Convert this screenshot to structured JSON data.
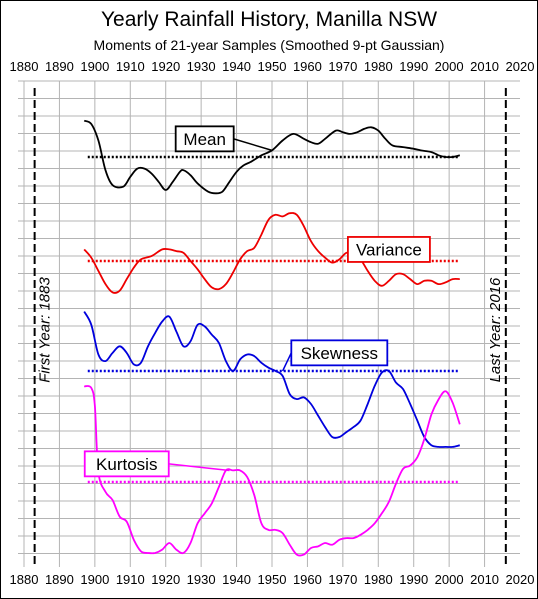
{
  "chart_data": {
    "type": "line",
    "title": "Yearly Rainfall History, Manilla NSW",
    "subtitle": "Moments of 21-year Samples (Smoothed 9-pt Gaussian)",
    "xlim": [
      1880,
      2020
    ],
    "x_ticks": [
      "1880",
      "1890",
      "1900",
      "1910",
      "1920",
      "1930",
      "1940",
      "1950",
      "1960",
      "1970",
      "1980",
      "1990",
      "2000",
      "2010",
      "2020"
    ],
    "grid": true,
    "annotations": {
      "first_year": {
        "x": 1883,
        "label": "First Year: 1883"
      },
      "last_year": {
        "x": 2016,
        "label": "Last Year: 2016"
      }
    },
    "series": [
      {
        "name": "Mean",
        "color": "#000000",
        "mean_line": 0.0,
        "label_at": [
          1931,
          0.55
        ],
        "points": [
          [
            1897,
            1.1
          ],
          [
            1899,
            1.0
          ],
          [
            1901,
            0.5
          ],
          [
            1903,
            -0.4
          ],
          [
            1905,
            -0.85
          ],
          [
            1908,
            -0.9
          ],
          [
            1910,
            -0.6
          ],
          [
            1912,
            -0.35
          ],
          [
            1914,
            -0.35
          ],
          [
            1916,
            -0.5
          ],
          [
            1918,
            -0.75
          ],
          [
            1920,
            -1.0
          ],
          [
            1922,
            -0.75
          ],
          [
            1924,
            -0.45
          ],
          [
            1925,
            -0.4
          ],
          [
            1927,
            -0.55
          ],
          [
            1929,
            -0.8
          ],
          [
            1932,
            -1.05
          ],
          [
            1934,
            -1.1
          ],
          [
            1936,
            -1.05
          ],
          [
            1938,
            -0.75
          ],
          [
            1940,
            -0.45
          ],
          [
            1942,
            -0.25
          ],
          [
            1944,
            -0.15
          ],
          [
            1947,
            0.05
          ],
          [
            1950,
            0.2
          ],
          [
            1953,
            0.5
          ],
          [
            1956,
            0.7
          ],
          [
            1959,
            0.55
          ],
          [
            1961,
            0.45
          ],
          [
            1963,
            0.4
          ],
          [
            1965,
            0.55
          ],
          [
            1968,
            0.8
          ],
          [
            1970,
            0.75
          ],
          [
            1972,
            0.7
          ],
          [
            1974,
            0.75
          ],
          [
            1976,
            0.85
          ],
          [
            1978,
            0.9
          ],
          [
            1980,
            0.8
          ],
          [
            1982,
            0.55
          ],
          [
            1984,
            0.35
          ],
          [
            1987,
            0.3
          ],
          [
            1990,
            0.25
          ],
          [
            1992,
            0.2
          ],
          [
            1995,
            0.15
          ],
          [
            1997,
            0.05
          ],
          [
            1999,
            0.0
          ],
          [
            2001,
            0.0
          ],
          [
            2003,
            0.05
          ]
        ]
      },
      {
        "name": "Variance",
        "color": "#ee0000",
        "mean_line": 0.0,
        "label_at": [
          1983,
          0.35
        ],
        "points": [
          [
            1897,
            0.35
          ],
          [
            1899,
            0.1
          ],
          [
            1901,
            -0.3
          ],
          [
            1903,
            -0.7
          ],
          [
            1905,
            -0.95
          ],
          [
            1907,
            -0.9
          ],
          [
            1909,
            -0.55
          ],
          [
            1911,
            -0.2
          ],
          [
            1913,
            0.05
          ],
          [
            1916,
            0.15
          ],
          [
            1919,
            0.35
          ],
          [
            1921,
            0.35
          ],
          [
            1923,
            0.3
          ],
          [
            1925,
            0.25
          ],
          [
            1927,
            0.0
          ],
          [
            1929,
            -0.25
          ],
          [
            1931,
            -0.55
          ],
          [
            1933,
            -0.8
          ],
          [
            1935,
            -0.85
          ],
          [
            1937,
            -0.7
          ],
          [
            1939,
            -0.35
          ],
          [
            1941,
            0.05
          ],
          [
            1943,
            0.3
          ],
          [
            1945,
            0.4
          ],
          [
            1947,
            0.8
          ],
          [
            1949,
            1.25
          ],
          [
            1951,
            1.4
          ],
          [
            1953,
            1.35
          ],
          [
            1955,
            1.45
          ],
          [
            1957,
            1.4
          ],
          [
            1959,
            1.05
          ],
          [
            1961,
            0.6
          ],
          [
            1963,
            0.3
          ],
          [
            1965,
            0.1
          ],
          [
            1967,
            -0.05
          ],
          [
            1969,
            0.05
          ],
          [
            1971,
            0.25
          ],
          [
            1973,
            0.2
          ],
          [
            1975,
            0.05
          ],
          [
            1977,
            -0.3
          ],
          [
            1979,
            -0.6
          ],
          [
            1981,
            -0.75
          ],
          [
            1983,
            -0.6
          ],
          [
            1985,
            -0.4
          ],
          [
            1987,
            -0.4
          ],
          [
            1989,
            -0.55
          ],
          [
            1991,
            -0.7
          ],
          [
            1993,
            -0.6
          ],
          [
            1995,
            -0.6
          ],
          [
            1997,
            -0.7
          ],
          [
            1999,
            -0.65
          ],
          [
            2001,
            -0.55
          ],
          [
            2003,
            -0.55
          ]
        ]
      },
      {
        "name": "Skewness",
        "color": "#0000dd",
        "mean_line": 0.0,
        "label_at": [
          1969,
          0.55
        ],
        "points": [
          [
            1897,
            1.8
          ],
          [
            1899,
            1.4
          ],
          [
            1901,
            0.5
          ],
          [
            1903,
            0.3
          ],
          [
            1905,
            0.55
          ],
          [
            1907,
            0.75
          ],
          [
            1909,
            0.55
          ],
          [
            1911,
            0.2
          ],
          [
            1913,
            0.25
          ],
          [
            1915,
            0.75
          ],
          [
            1917,
            1.15
          ],
          [
            1919,
            1.5
          ],
          [
            1921,
            1.65
          ],
          [
            1923,
            1.2
          ],
          [
            1925,
            0.75
          ],
          [
            1927,
            0.9
          ],
          [
            1929,
            1.4
          ],
          [
            1931,
            1.35
          ],
          [
            1933,
            1.1
          ],
          [
            1935,
            0.85
          ],
          [
            1937,
            0.3
          ],
          [
            1939,
            0.0
          ],
          [
            1941,
            0.35
          ],
          [
            1943,
            0.5
          ],
          [
            1945,
            0.45
          ],
          [
            1947,
            0.25
          ],
          [
            1949,
            0.1
          ],
          [
            1951,
            0.0
          ],
          [
            1953,
            -0.15
          ],
          [
            1955,
            -0.7
          ],
          [
            1957,
            -0.85
          ],
          [
            1959,
            -0.8
          ],
          [
            1961,
            -1.0
          ],
          [
            1963,
            -1.35
          ],
          [
            1965,
            -1.7
          ],
          [
            1967,
            -2.0
          ],
          [
            1969,
            -2.0
          ],
          [
            1971,
            -1.85
          ],
          [
            1973,
            -1.7
          ],
          [
            1975,
            -1.5
          ],
          [
            1977,
            -1.0
          ],
          [
            1979,
            -0.45
          ],
          [
            1981,
            -0.05
          ],
          [
            1983,
            0.0
          ],
          [
            1985,
            -0.35
          ],
          [
            1987,
            -0.55
          ],
          [
            1989,
            -1.0
          ],
          [
            1991,
            -1.5
          ],
          [
            1993,
            -2.0
          ],
          [
            1995,
            -2.25
          ],
          [
            1997,
            -2.3
          ],
          [
            1999,
            -2.3
          ],
          [
            2001,
            -2.3
          ],
          [
            2003,
            -2.25
          ]
        ]
      },
      {
        "name": "Kurtosis",
        "color": "#ff00ff",
        "mean_line": 0.0,
        "label_at": [
          1909,
          0.55
        ],
        "points": [
          [
            1897,
            2.9
          ],
          [
            1899,
            2.85
          ],
          [
            1900,
            2.3
          ],
          [
            1901,
            0.3
          ],
          [
            1903,
            -0.3
          ],
          [
            1905,
            -0.55
          ],
          [
            1907,
            -1.05
          ],
          [
            1909,
            -1.2
          ],
          [
            1911,
            -1.75
          ],
          [
            1913,
            -2.1
          ],
          [
            1915,
            -2.15
          ],
          [
            1917,
            -2.15
          ],
          [
            1919,
            -2.05
          ],
          [
            1921,
            -1.85
          ],
          [
            1923,
            -2.05
          ],
          [
            1925,
            -2.15
          ],
          [
            1927,
            -1.85
          ],
          [
            1929,
            -1.25
          ],
          [
            1931,
            -0.95
          ],
          [
            1933,
            -0.65
          ],
          [
            1935,
            -0.15
          ],
          [
            1937,
            0.35
          ],
          [
            1939,
            0.35
          ],
          [
            1941,
            0.35
          ],
          [
            1943,
            0.15
          ],
          [
            1945,
            -0.4
          ],
          [
            1947,
            -1.25
          ],
          [
            1949,
            -1.45
          ],
          [
            1951,
            -1.45
          ],
          [
            1953,
            -1.55
          ],
          [
            1955,
            -1.9
          ],
          [
            1957,
            -2.2
          ],
          [
            1959,
            -2.2
          ],
          [
            1961,
            -2.0
          ],
          [
            1963,
            -1.95
          ],
          [
            1965,
            -1.85
          ],
          [
            1967,
            -1.9
          ],
          [
            1969,
            -1.75
          ],
          [
            1971,
            -1.7
          ],
          [
            1973,
            -1.7
          ],
          [
            1975,
            -1.6
          ],
          [
            1977,
            -1.45
          ],
          [
            1979,
            -1.25
          ],
          [
            1981,
            -0.95
          ],
          [
            1983,
            -0.6
          ],
          [
            1985,
            -0.05
          ],
          [
            1987,
            0.4
          ],
          [
            1989,
            0.5
          ],
          [
            1991,
            0.75
          ],
          [
            1993,
            1.3
          ],
          [
            1995,
            2.05
          ],
          [
            1997,
            2.5
          ],
          [
            1999,
            2.75
          ],
          [
            2001,
            2.4
          ],
          [
            2003,
            1.75
          ]
        ]
      }
    ]
  }
}
